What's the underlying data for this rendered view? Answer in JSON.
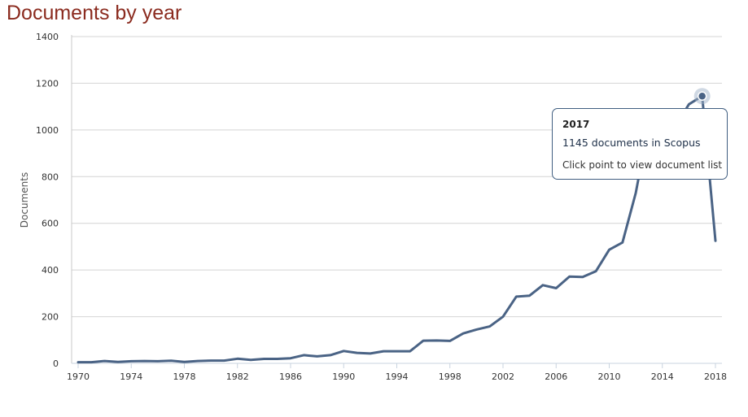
{
  "title": "Documents by year",
  "chart_data": {
    "type": "line",
    "title": "Documents by year",
    "xlabel": "",
    "ylabel": "Documents",
    "xlim": [
      1970,
      2018
    ],
    "ylim": [
      0,
      1400
    ],
    "x_ticks": [
      "1970",
      "1974",
      "1978",
      "1982",
      "1986",
      "1990",
      "1994",
      "1998",
      "2002",
      "2006",
      "2010",
      "2014",
      "2018"
    ],
    "y_ticks": [
      "0",
      "200",
      "400",
      "600",
      "800",
      "1000",
      "1200",
      "1400"
    ],
    "grid": true,
    "line_color": "#4a6385",
    "series": [
      {
        "x": [
          1970,
          1971,
          1972,
          1973,
          1974,
          1975,
          1976,
          1977,
          1978,
          1979,
          1980,
          1981,
          1982,
          1983,
          1984,
          1985,
          1986,
          1987,
          1988,
          1989,
          1990,
          1991,
          1992,
          1993,
          1994,
          1995,
          1996,
          1997,
          1998,
          1999,
          2000,
          2001,
          2002,
          2003,
          2004,
          2005,
          2006,
          2007,
          2008,
          2009,
          2010,
          2011,
          2012,
          2013,
          2014,
          2015,
          2016,
          2017,
          2018
        ],
        "y": [
          5,
          5,
          10,
          6,
          9,
          10,
          9,
          11,
          6,
          10,
          12,
          12,
          20,
          15,
          19,
          19,
          22,
          35,
          30,
          35,
          53,
          45,
          42,
          52,
          52,
          52,
          97,
          98,
          96,
          128,
          145,
          158,
          200,
          286,
          290,
          335,
          322,
          372,
          370,
          395,
          487,
          518,
          730,
          1030,
          1067,
          1017,
          1110,
          1145,
          525
        ]
      }
    ],
    "highlight": {
      "x": 2017,
      "y": 1145
    }
  },
  "tooltip": {
    "year": "2017",
    "count_text": "1145 documents in Scopus",
    "hint": "Click point to view document list"
  }
}
